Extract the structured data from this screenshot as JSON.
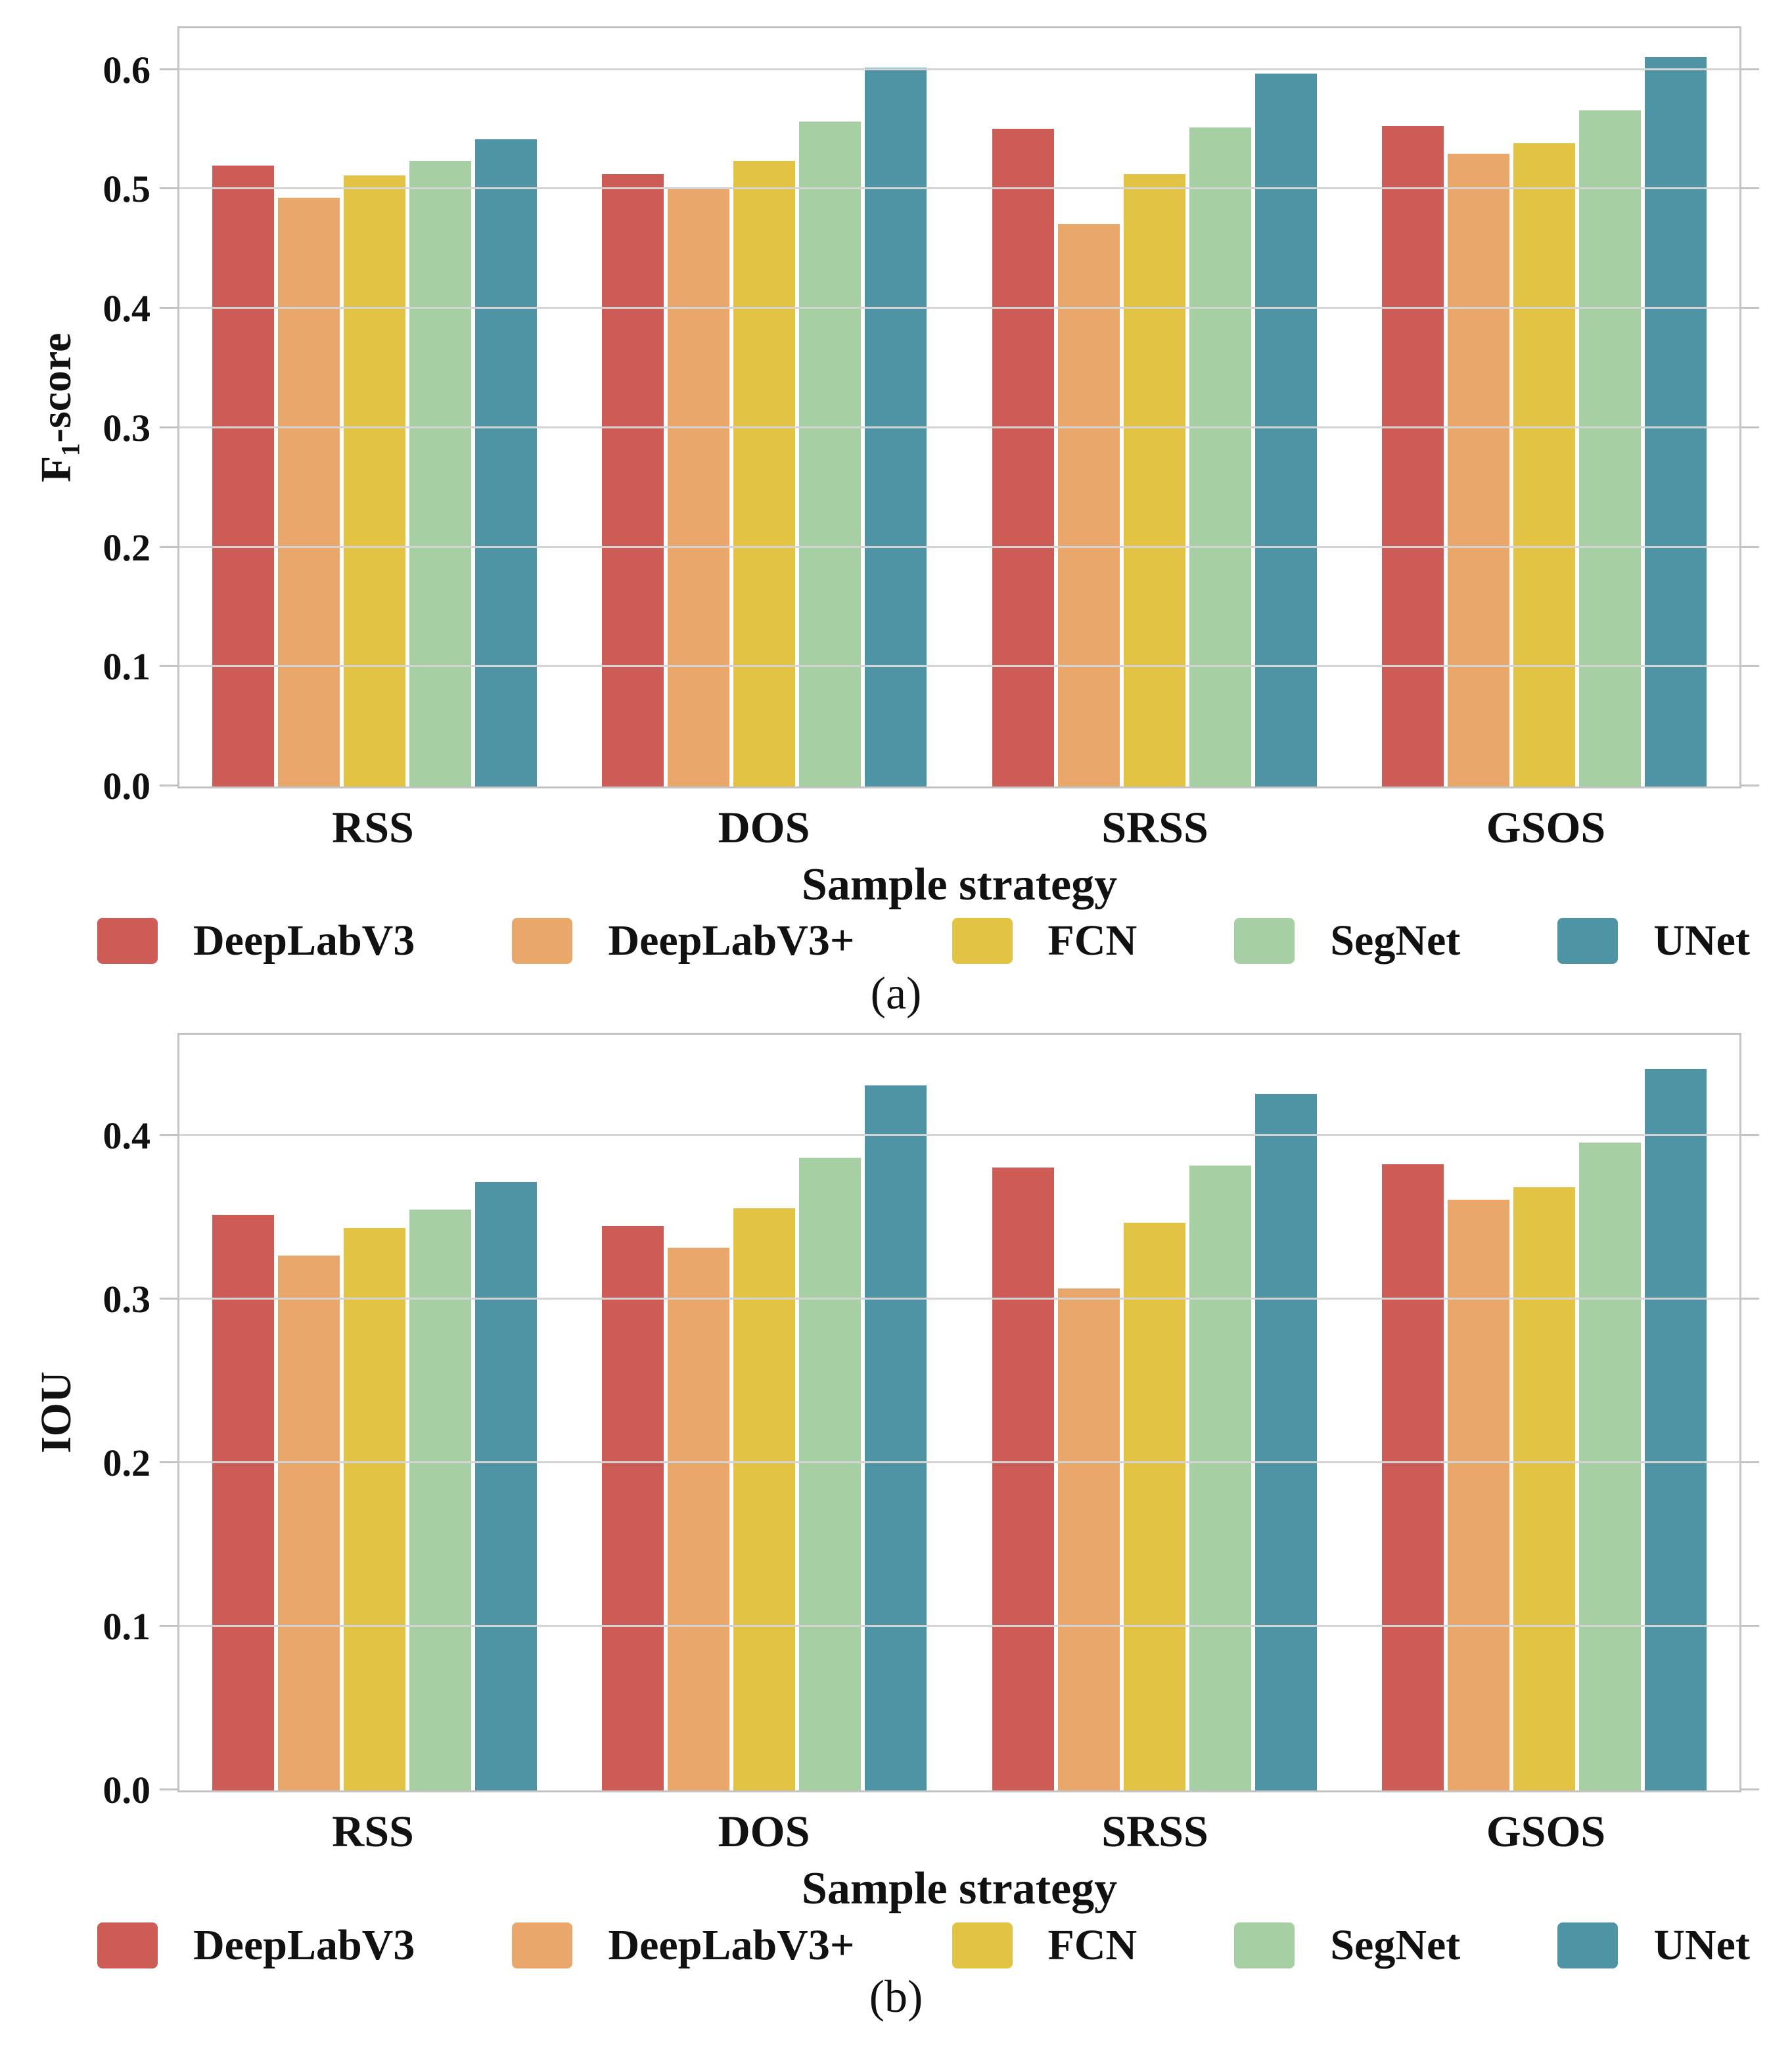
{
  "figure": {
    "background": "#ffffff",
    "axis_color": "#c3c3c3",
    "grid_color": "#d4d4d4",
    "text_color": "#111111",
    "legend_items": [
      {
        "label": "DeepLabV3",
        "color": "#cd5c56"
      },
      {
        "label": "DeepLabV3+",
        "color": "#e9a76c"
      },
      {
        "label": "FCN",
        "color": "#e2c344"
      },
      {
        "label": "SegNet",
        "color": "#a7cfa4"
      },
      {
        "label": "UNet",
        "color": "#4f94a5"
      }
    ]
  },
  "chart_data": [
    {
      "type": "bar",
      "caption": "(a)",
      "title": "",
      "xlabel": "Sample strategy",
      "ylabel": "F₁-score",
      "categories": [
        "RSS",
        "DOS",
        "SRSS",
        "GSOS"
      ],
      "series": [
        {
          "name": "DeepLabV3",
          "color": "#cd5c56",
          "values": [
            0.52,
            0.513,
            0.551,
            0.553
          ]
        },
        {
          "name": "DeepLabV3+",
          "color": "#e9a76c",
          "values": [
            0.493,
            0.5,
            0.471,
            0.53
          ]
        },
        {
          "name": "FCN",
          "color": "#e2c344",
          "values": [
            0.512,
            0.524,
            0.513,
            0.539
          ]
        },
        {
          "name": "SegNet",
          "color": "#a7cfa4",
          "values": [
            0.524,
            0.557,
            0.552,
            0.566
          ]
        },
        {
          "name": "UNet",
          "color": "#4f94a5",
          "values": [
            0.542,
            0.602,
            0.597,
            0.611
          ]
        }
      ],
      "ylim": [
        0,
        0.635
      ],
      "yticks": [
        0.0,
        0.1,
        0.2,
        0.3,
        0.4,
        0.5,
        0.6
      ],
      "grid": true,
      "legend_position": "bottom"
    },
    {
      "type": "bar",
      "caption": "(b)",
      "title": "",
      "xlabel": "Sample strategy",
      "ylabel": "IOU",
      "categories": [
        "RSS",
        "DOS",
        "SRSS",
        "GSOS"
      ],
      "series": [
        {
          "name": "DeepLabV3",
          "color": "#cd5c56",
          "values": [
            0.352,
            0.345,
            0.381,
            0.383
          ]
        },
        {
          "name": "DeepLabV3+",
          "color": "#e9a76c",
          "values": [
            0.327,
            0.332,
            0.307,
            0.361
          ]
        },
        {
          "name": "FCN",
          "color": "#e2c344",
          "values": [
            0.344,
            0.356,
            0.347,
            0.369
          ]
        },
        {
          "name": "SegNet",
          "color": "#a7cfa4",
          "values": [
            0.355,
            0.387,
            0.382,
            0.396
          ]
        },
        {
          "name": "UNet",
          "color": "#4f94a5",
          "values": [
            0.372,
            0.431,
            0.426,
            0.441
          ]
        }
      ],
      "ylim": [
        0,
        0.462
      ],
      "yticks": [
        0.0,
        0.1,
        0.2,
        0.3,
        0.4
      ],
      "grid": true,
      "legend_position": "bottom"
    }
  ]
}
